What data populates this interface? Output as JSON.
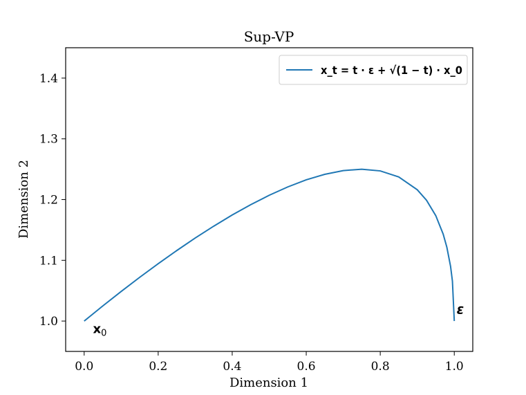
{
  "chart_data": {
    "type": "line",
    "title": "Sup-VP",
    "xlabel": "Dimension 1",
    "ylabel": "Dimension 2",
    "xlim": [
      -0.05,
      1.05
    ],
    "ylim": [
      0.95,
      1.45
    ],
    "xticks": [
      0.0,
      0.2,
      0.4,
      0.6,
      0.8,
      1.0
    ],
    "xtick_labels": [
      "0.0",
      "0.2",
      "0.4",
      "0.6",
      "0.8",
      "1.0"
    ],
    "yticks": [
      1.0,
      1.1,
      1.2,
      1.3,
      1.4
    ],
    "ytick_labels": [
      "1.0",
      "1.1",
      "1.2",
      "1.3",
      "1.4"
    ],
    "grid": false,
    "legend_position": "top-right",
    "series": [
      {
        "name": "x_t = t · ε + √(1 − t) · x_0",
        "color": "#1f77b4",
        "x": [
          0.0,
          0.05,
          0.1,
          0.15,
          0.2,
          0.25,
          0.3,
          0.35,
          0.4,
          0.45,
          0.5,
          0.55,
          0.6,
          0.65,
          0.7,
          0.75,
          0.8,
          0.85,
          0.9,
          0.925,
          0.95,
          0.97,
          0.98,
          0.99,
          0.995,
          1.0
        ],
        "y": [
          1.0,
          1.0247,
          1.0487,
          1.072,
          1.0944,
          1.116,
          1.1367,
          1.1562,
          1.1746,
          1.1916,
          1.2071,
          1.2208,
          1.2325,
          1.2416,
          1.2477,
          1.25,
          1.2472,
          1.2373,
          1.2162,
          1.1989,
          1.1736,
          1.1432,
          1.1214,
          1.09,
          1.0657,
          1.0
        ]
      }
    ],
    "annotations": [
      {
        "text": "x0",
        "label_main": "x",
        "label_sub": "0",
        "x": 0.02,
        "y": 0.987
      },
      {
        "text": "ε",
        "x": 1.01,
        "y": 1.01
      }
    ]
  }
}
